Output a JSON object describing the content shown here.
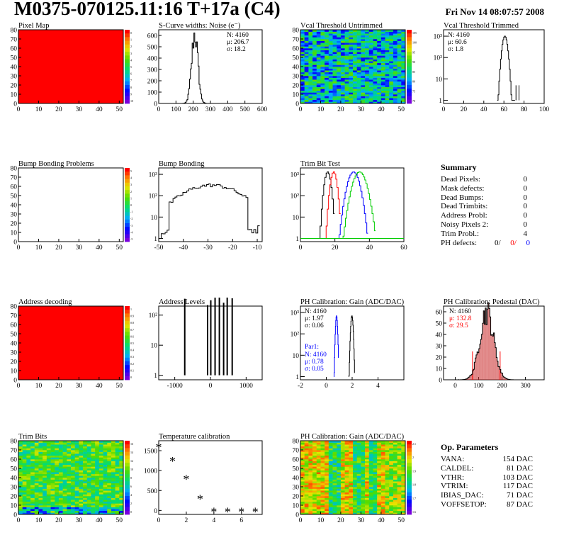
{
  "header": {
    "title": "M0375-070125.11:16 T+17a (C4)",
    "date": "Fri Nov 14 08:07:57 2008"
  },
  "colors": {
    "red": "#ff0000",
    "blue": "#0000ff",
    "green": "#00cc00",
    "black": "#000000",
    "pedestal_fill": "#cc3333"
  },
  "summary": {
    "title": "Summary",
    "rows": [
      {
        "label": "Dead Pixels:",
        "value": "0"
      },
      {
        "label": "Mask defects:",
        "value": "0"
      },
      {
        "label": "Dead Bumps:",
        "value": "0"
      },
      {
        "label": "Dead Trimbits:",
        "value": "0"
      },
      {
        "label": "Address Probl:",
        "value": "0"
      },
      {
        "label": "Noisy Pixels 2:",
        "value": "0"
      },
      {
        "label": "Trim Probl.:",
        "value": "4"
      }
    ],
    "ph_label": "PH defects:",
    "ph_values": [
      "0/",
      "0/",
      "0"
    ]
  },
  "op_params": {
    "title": "Op. Parameters",
    "rows": [
      {
        "label": "VANA:",
        "value": "154 DAC"
      },
      {
        "label": "CALDEL:",
        "value": "81 DAC"
      },
      {
        "label": "VTHR:",
        "value": "103 DAC"
      },
      {
        "label": "VTRIM:",
        "value": "117 DAC"
      },
      {
        "label": "IBIAS_DAC:",
        "value": "71 DAC"
      },
      {
        "label": "VOFFSETOP:",
        "value": "87 DAC"
      }
    ]
  },
  "chart_data": [
    {
      "id": "pixel-map",
      "type": "heatmap",
      "title": "Pixel Map",
      "xticks": [
        0,
        10,
        20,
        30,
        40,
        50
      ],
      "yticks": [
        0,
        10,
        20,
        30,
        40,
        50,
        60,
        70,
        80
      ],
      "xlim": [
        0,
        52
      ],
      "ylim": [
        0,
        80
      ],
      "fill": "uniform",
      "value": 10,
      "zticks": [
        "0",
        "1",
        "2",
        "3",
        "4",
        "5",
        "6",
        "7",
        "8",
        "9",
        "10"
      ]
    },
    {
      "id": "scurve",
      "type": "bar",
      "title": "S-Curve widths: Noise (e⁻)",
      "xticks": [
        0,
        100,
        200,
        300,
        400,
        500,
        600
      ],
      "yticks": [
        0,
        100,
        200,
        300,
        400,
        500,
        600
      ],
      "xlim": [
        0,
        600
      ],
      "ylim": [
        0,
        650
      ],
      "stats": [
        "N: 4160",
        "μ: 206.7",
        "σ: 18.2"
      ],
      "peak": {
        "mean": 206.7,
        "sigma": 18.2,
        "max": 610
      }
    },
    {
      "id": "vcal-untrimmed",
      "type": "heatmap",
      "title": "Vcal Threshold Untrimmed",
      "xticks": [
        0,
        10,
        20,
        30,
        40,
        50
      ],
      "yticks": [
        0,
        10,
        20,
        30,
        40,
        50,
        60,
        70,
        80
      ],
      "xlim": [
        0,
        52
      ],
      "ylim": [
        0,
        80
      ],
      "fill": "noise_green",
      "zticks": [
        "105",
        "100",
        "95",
        "90",
        "85",
        "80",
        "75",
        "70"
      ]
    },
    {
      "id": "vcal-trimmed",
      "type": "bar",
      "title": "Vcal Threshold Trimmed",
      "xticks": [
        0,
        20,
        40,
        60,
        80,
        100
      ],
      "ytick_labels": [
        "1",
        "10",
        "10²",
        "10³"
      ],
      "xlim": [
        0,
        100
      ],
      "log": true,
      "stats": [
        "N: 4160",
        "μ: 60.6",
        "σ:  1.8"
      ],
      "peak": {
        "mean": 60.6,
        "sigma": 1.8,
        "max": 1000
      }
    },
    {
      "id": "bump-bonding-problems",
      "type": "heatmap",
      "title": "Bump Bonding Problems",
      "xticks": [
        0,
        10,
        20,
        30,
        40,
        50
      ],
      "yticks": [
        0,
        10,
        20,
        30,
        40,
        50,
        60,
        70,
        80
      ],
      "xlim": [
        0,
        52
      ],
      "ylim": [
        0,
        80
      ],
      "fill": "empty",
      "zticks": [
        "5",
        "4",
        "3",
        "2",
        "1",
        "0",
        "-1",
        "-2",
        "-3",
        "-4",
        "-5"
      ]
    },
    {
      "id": "bump-bonding",
      "type": "bar",
      "title": "Bump Bonding",
      "xticks": [
        -50,
        -40,
        -30,
        -20,
        -10
      ],
      "ytick_labels": [
        "1",
        "10",
        "10²",
        "10³"
      ],
      "xlim": [
        -50,
        -8
      ],
      "log": true
    },
    {
      "id": "trim-bit-test",
      "type": "bar",
      "title": "Trim Bit Test",
      "xticks": [
        0,
        20,
        40,
        60
      ],
      "ytick_labels": [
        "1",
        "10",
        "10²",
        "10³"
      ],
      "xlim": [
        0,
        60
      ],
      "log": true,
      "series": [
        {
          "color": "#000000",
          "mean": 15.5,
          "sigma": 1.2
        },
        {
          "color": "#ff0000",
          "mean": 19,
          "sigma": 1.2
        },
        {
          "color": "#0000ff",
          "mean": 30.5,
          "sigma": 2.2
        },
        {
          "color": "#00cc00",
          "mean": 34,
          "sigma": 2.5
        }
      ]
    },
    {
      "id": "address-decoding",
      "type": "heatmap",
      "title": "Address decoding",
      "xticks": [
        0,
        10,
        20,
        30,
        40,
        50
      ],
      "yticks": [
        0,
        10,
        20,
        30,
        40,
        50,
        60,
        70,
        80
      ],
      "xlim": [
        0,
        52
      ],
      "ylim": [
        0,
        80
      ],
      "fill": "uniform",
      "value": 1,
      "zticks": [
        "1",
        "0.9",
        "0.8",
        "0.7",
        "0.6",
        "0.5",
        "0.4",
        "0.3",
        "0.2",
        "0.1",
        "0"
      ]
    },
    {
      "id": "address-levels",
      "type": "bar",
      "title": "Address Levels",
      "xticks": [
        -1000,
        0,
        1000
      ],
      "ytick_labels": [
        "1",
        "10",
        "10²"
      ],
      "xlim": [
        -1450,
        1450
      ],
      "log": true,
      "spikes": [
        -720,
        -80,
        10,
        130,
        250,
        370,
        470,
        610
      ]
    },
    {
      "id": "ph-gain",
      "type": "bar",
      "title": "PH Calibration: Gain (ADC/DAC)",
      "xticks": [
        -2,
        0,
        2,
        4
      ],
      "ytick_labels": [
        "1",
        "10",
        "10²",
        "10³"
      ],
      "xlim": [
        -2,
        6
      ],
      "log": true,
      "stats": [
        "N: 4160",
        "μ: 1.97",
        "σ: 0.06"
      ],
      "stats2_title": "Par1:",
      "stats2": [
        "N: 4160",
        "μ: 0.78",
        "σ: 0.05"
      ],
      "series": [
        {
          "color": "#000000",
          "mean": 1.97,
          "sigma": 0.06
        },
        {
          "color": "#0000ff",
          "mean": 0.78,
          "sigma": 0.05
        }
      ]
    },
    {
      "id": "ph-pedestal",
      "type": "bar",
      "title": "PH Calibration: Pedestal (DAC)",
      "xticks": [
        0,
        100,
        200,
        300
      ],
      "yticks": [
        0,
        10,
        20,
        30,
        40,
        50,
        60
      ],
      "xlim": [
        -50,
        380
      ],
      "ylim": [
        0,
        65
      ],
      "stats": [
        "N: 4160",
        "μ: 132.8",
        "σ: 29.5"
      ],
      "peak": {
        "mean": 132.8,
        "sigma": 29.5,
        "max": 60
      }
    },
    {
      "id": "trim-bits",
      "type": "heatmap",
      "title": "Trim Bits",
      "xticks": [
        0,
        10,
        20,
        30,
        40,
        50
      ],
      "yticks": [
        0,
        10,
        20,
        30,
        40,
        50,
        60,
        70,
        80
      ],
      "xlim": [
        0,
        52
      ],
      "ylim": [
        0,
        80
      ],
      "fill": "trimbits",
      "zticks": [
        "16",
        "14",
        "12",
        "10",
        "8",
        "6",
        "4",
        "2",
        "0"
      ]
    },
    {
      "id": "temperature",
      "type": "scatter",
      "title": "Temperature calibration",
      "xticks": [
        0,
        2,
        4,
        6
      ],
      "yticks": [
        0,
        500,
        1000,
        1500
      ],
      "xlim": [
        0,
        7.5
      ],
      "ylim": [
        -100,
        1750
      ],
      "x": [
        0,
        1,
        2,
        3,
        4,
        5,
        6,
        7
      ],
      "y": [
        1620,
        1270,
        820,
        320,
        0,
        0,
        0,
        0
      ]
    },
    {
      "id": "ph-gain-map",
      "type": "heatmap",
      "title": "PH Calibration: Gain (ADC/DAC)",
      "xticks": [
        0,
        10,
        20,
        30,
        40,
        50
      ],
      "yticks": [
        0,
        10,
        20,
        30,
        40,
        50,
        60,
        70,
        80
      ],
      "xlim": [
        0,
        52
      ],
      "ylim": [
        0,
        80
      ],
      "fill": "gainmap",
      "zticks": [
        "2.1",
        "2",
        "1.9",
        "1.8",
        "1.7",
        "1.6"
      ]
    }
  ]
}
